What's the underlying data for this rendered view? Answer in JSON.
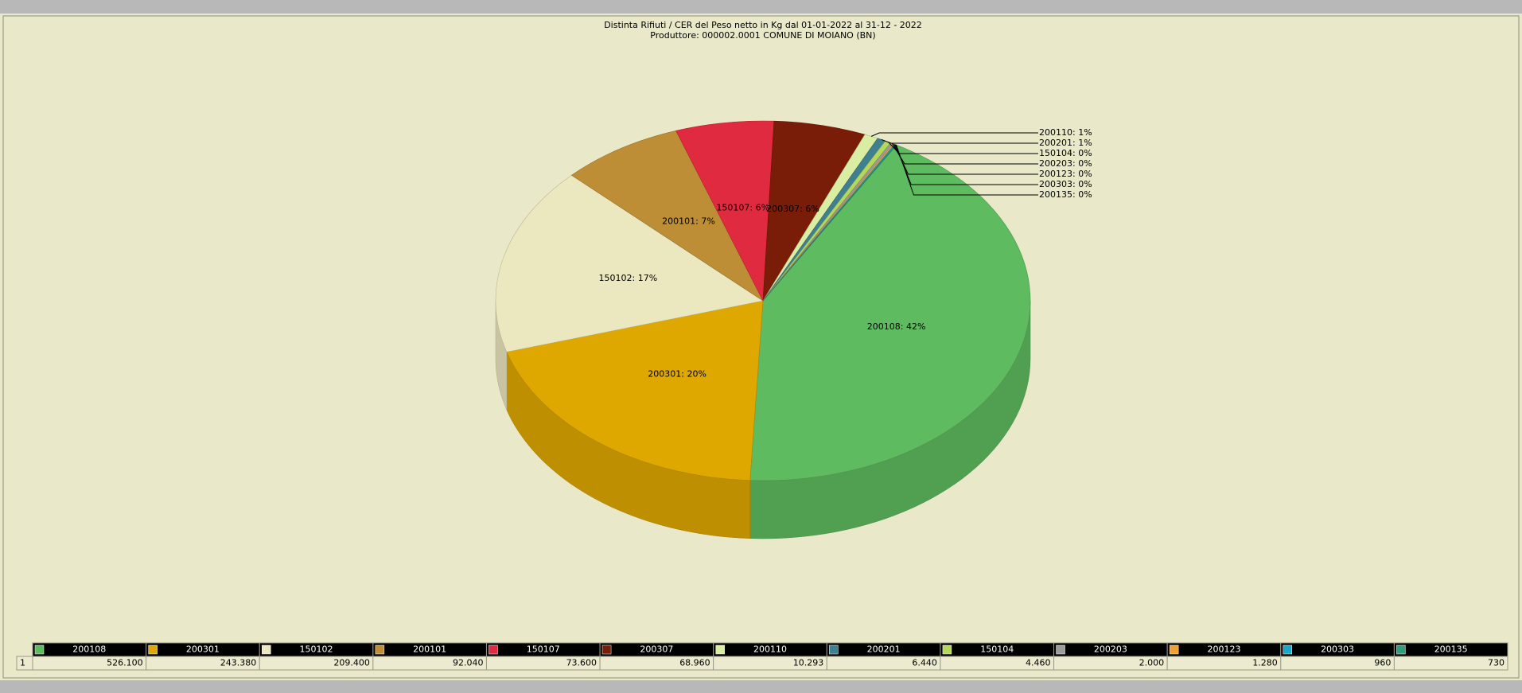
{
  "chart_data": {
    "type": "pie",
    "title": "Distinta Rifiuti / CER  del Peso netto in Kg dal 01-01-2022 al 31-12 - 2022",
    "subtitle": "Produttore: 000002.0001 COMUNE DI MOIANO (BN)",
    "categories": [
      "200108",
      "200301",
      "150102",
      "200101",
      "150107",
      "200307",
      "200110",
      "200201",
      "150104",
      "200203",
      "200123",
      "200303",
      "200135"
    ],
    "values": [
      526100,
      243380,
      209400,
      92040,
      73600,
      68960,
      10293,
      6440,
      4460,
      2000,
      1280,
      960,
      730
    ],
    "value_labels": [
      "526.100",
      "243.380",
      "209.400",
      "92.040",
      "73.600",
      "68.960",
      "10.293",
      "6.440",
      "4.460",
      "2.000",
      "1.280",
      "960",
      "730"
    ],
    "slice_labels": [
      "200108: 42%",
      "200301: 20%",
      "150102: 17%",
      "200101: 7%",
      "150107: 6%",
      "200307: 6%",
      "200110: 1%",
      "200201: 1%",
      "150104: 0%",
      "200203: 0%",
      "200123: 0%",
      "200303: 0%",
      "200135: 0%"
    ],
    "colors": [
      "#5fbb5f",
      "#dfa800",
      "#ebe7bf",
      "#bd8e36",
      "#e02a3f",
      "#7a1d08",
      "#d9eea2",
      "#3e7f90",
      "#b4d85a",
      "#9c9c9c",
      "#efa030",
      "#1aa7c8",
      "#2f9d79"
    ],
    "row_label": "1"
  }
}
